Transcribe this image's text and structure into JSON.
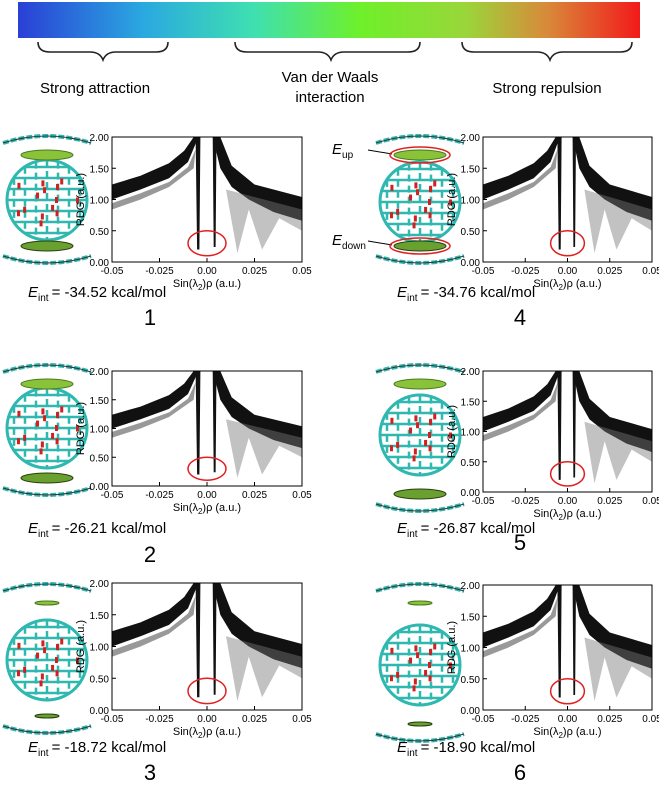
{
  "color_bar": {
    "labels": [
      "Strong attraction",
      "Van der Waals",
      "interaction",
      "Strong repulsion"
    ]
  },
  "panels": [
    {
      "label": "1",
      "energy": {
        "symbol": "E",
        "subscript": "int",
        "text": "= -34.52 kcal/mol"
      },
      "chart": {
        "type": "scatter",
        "xlim": [
          -0.05,
          0.05
        ],
        "ylim": [
          0,
          2
        ],
        "xticks": [
          -0.05,
          -0.025,
          {
            "value": 0,
            "label": "0.00"
          },
          0.025,
          0.05
        ],
        "yticks": [
          {
            "value": 0,
            "label": "0.00"
          },
          {
            "value": 0.5,
            "label": "0.50"
          },
          {
            "value": 1,
            "label": "1.00"
          },
          {
            "value": 1.5,
            "label": "1.50"
          },
          {
            "value": 2,
            "label": "2.00"
          }
        ],
        "x_label": {
          "before": "Sin(λ",
          "sub": "2",
          "after": ")ρ (a.u.)"
        },
        "y_label": "RDG (a.u.)"
      }
    },
    {
      "label": "2",
      "energy": {
        "symbol": "E",
        "subscript": "int",
        "text": "= -26.21 kcal/mol"
      },
      "chart": {
        "type": "scatter",
        "xlim": [
          -0.05,
          0.05
        ],
        "ylim": [
          0,
          2
        ],
        "xticks": [
          -0.05,
          -0.025,
          {
            "value": 0,
            "label": "0.00"
          },
          0.025,
          0.05
        ],
        "yticks": [
          {
            "value": 0,
            "label": "0.00"
          },
          {
            "value": 0.5,
            "label": "0.50"
          },
          {
            "value": 1,
            "label": "1.00"
          },
          {
            "value": 1.5,
            "label": "1.50"
          },
          {
            "value": 2,
            "label": "2.00"
          }
        ],
        "x_label": {
          "before": "Sin(λ",
          "sub": "2",
          "after": ")ρ (a.u.)"
        },
        "y_label": "RDG (a.u.)"
      }
    },
    {
      "label": "3",
      "energy": {
        "symbol": "E",
        "subscript": "int",
        "text": "= -18.72 kcal/mol"
      },
      "chart": {
        "type": "scatter",
        "xlim": [
          -0.05,
          0.05
        ],
        "ylim": [
          0,
          2
        ],
        "xticks": [
          -0.05,
          -0.025,
          {
            "value": 0,
            "label": "0.00"
          },
          0.025,
          0.05
        ],
        "yticks": [
          {
            "value": 0,
            "label": "0.00"
          },
          {
            "value": 0.5,
            "label": "0.50"
          },
          {
            "value": 1,
            "label": "1.00"
          },
          {
            "value": 1.5,
            "label": "1.50"
          },
          {
            "value": 2,
            "label": "2.00"
          }
        ],
        "x_label": {
          "before": "Sin(λ",
          "sub": "2",
          "after": ")ρ (a.u.)"
        },
        "y_label": "RDG (a.u.)"
      }
    },
    {
      "label": "4",
      "energy": {
        "symbol": "E",
        "subscript": "int",
        "text": "= -34.76 kcal/mol"
      },
      "annotations": [
        {
          "symbol": "E",
          "subscript": "up"
        },
        {
          "symbol": "E",
          "subscript": "down"
        }
      ],
      "chart": {
        "type": "scatter",
        "xlim": [
          -0.05,
          0.05
        ],
        "ylim": [
          0,
          2
        ],
        "xticks": [
          -0.05,
          -0.025,
          {
            "value": 0,
            "label": "0.00"
          },
          0.025,
          0.05
        ],
        "yticks": [
          {
            "value": 0,
            "label": "0.00"
          },
          {
            "value": 0.5,
            "label": "0.50"
          },
          {
            "value": 1,
            "label": "1.00"
          },
          {
            "value": 1.5,
            "label": "1.50"
          },
          {
            "value": 2,
            "label": "2.00"
          }
        ],
        "x_label": {
          "before": "Sin(λ",
          "sub": "2",
          "after": ")ρ (a.u.)"
        },
        "y_label": "RDG (a.u.)"
      }
    },
    {
      "label": "5",
      "energy": {
        "symbol": "E",
        "subscript": "int",
        "text": "= -26.87 kcal/mol"
      },
      "chart": {
        "type": "scatter",
        "xlim": [
          -0.05,
          0.05
        ],
        "ylim": [
          0,
          2
        ],
        "xticks": [
          -0.05,
          -0.025,
          {
            "value": 0,
            "label": "0.00"
          },
          0.025,
          0.05
        ],
        "yticks": [
          {
            "value": 0,
            "label": "0.00"
          },
          {
            "value": 0.5,
            "label": "0.50"
          },
          {
            "value": 1,
            "label": "1.00"
          },
          {
            "value": 1.5,
            "label": "1.50"
          },
          {
            "value": 2,
            "label": "2.00"
          }
        ],
        "x_label": {
          "before": "Sin(λ",
          "sub": "2",
          "after": ")ρ (a.u.)"
        },
        "y_label": "RDG (a.u.)"
      }
    },
    {
      "label": "6",
      "energy": {
        "symbol": "E",
        "subscript": "int",
        "text": "= -18.90 kcal/mol"
      },
      "chart": {
        "type": "scatter",
        "xlim": [
          -0.05,
          0.05
        ],
        "ylim": [
          0,
          2
        ],
        "xticks": [
          -0.05,
          -0.025,
          {
            "value": 0,
            "label": "0.00"
          },
          0.025,
          0.05
        ],
        "yticks": [
          {
            "value": 0,
            "label": "0.00"
          },
          {
            "value": 0.5,
            "label": "0.50"
          },
          {
            "value": 1,
            "label": "1.00"
          },
          {
            "value": 1.5,
            "label": "1.50"
          },
          {
            "value": 2,
            "label": "2.00"
          }
        ],
        "x_label": {
          "before": "Sin(λ",
          "sub": "2",
          "after": ")ρ (a.u.)"
        },
        "y_label": "RDG (a.u.)"
      }
    }
  ]
}
